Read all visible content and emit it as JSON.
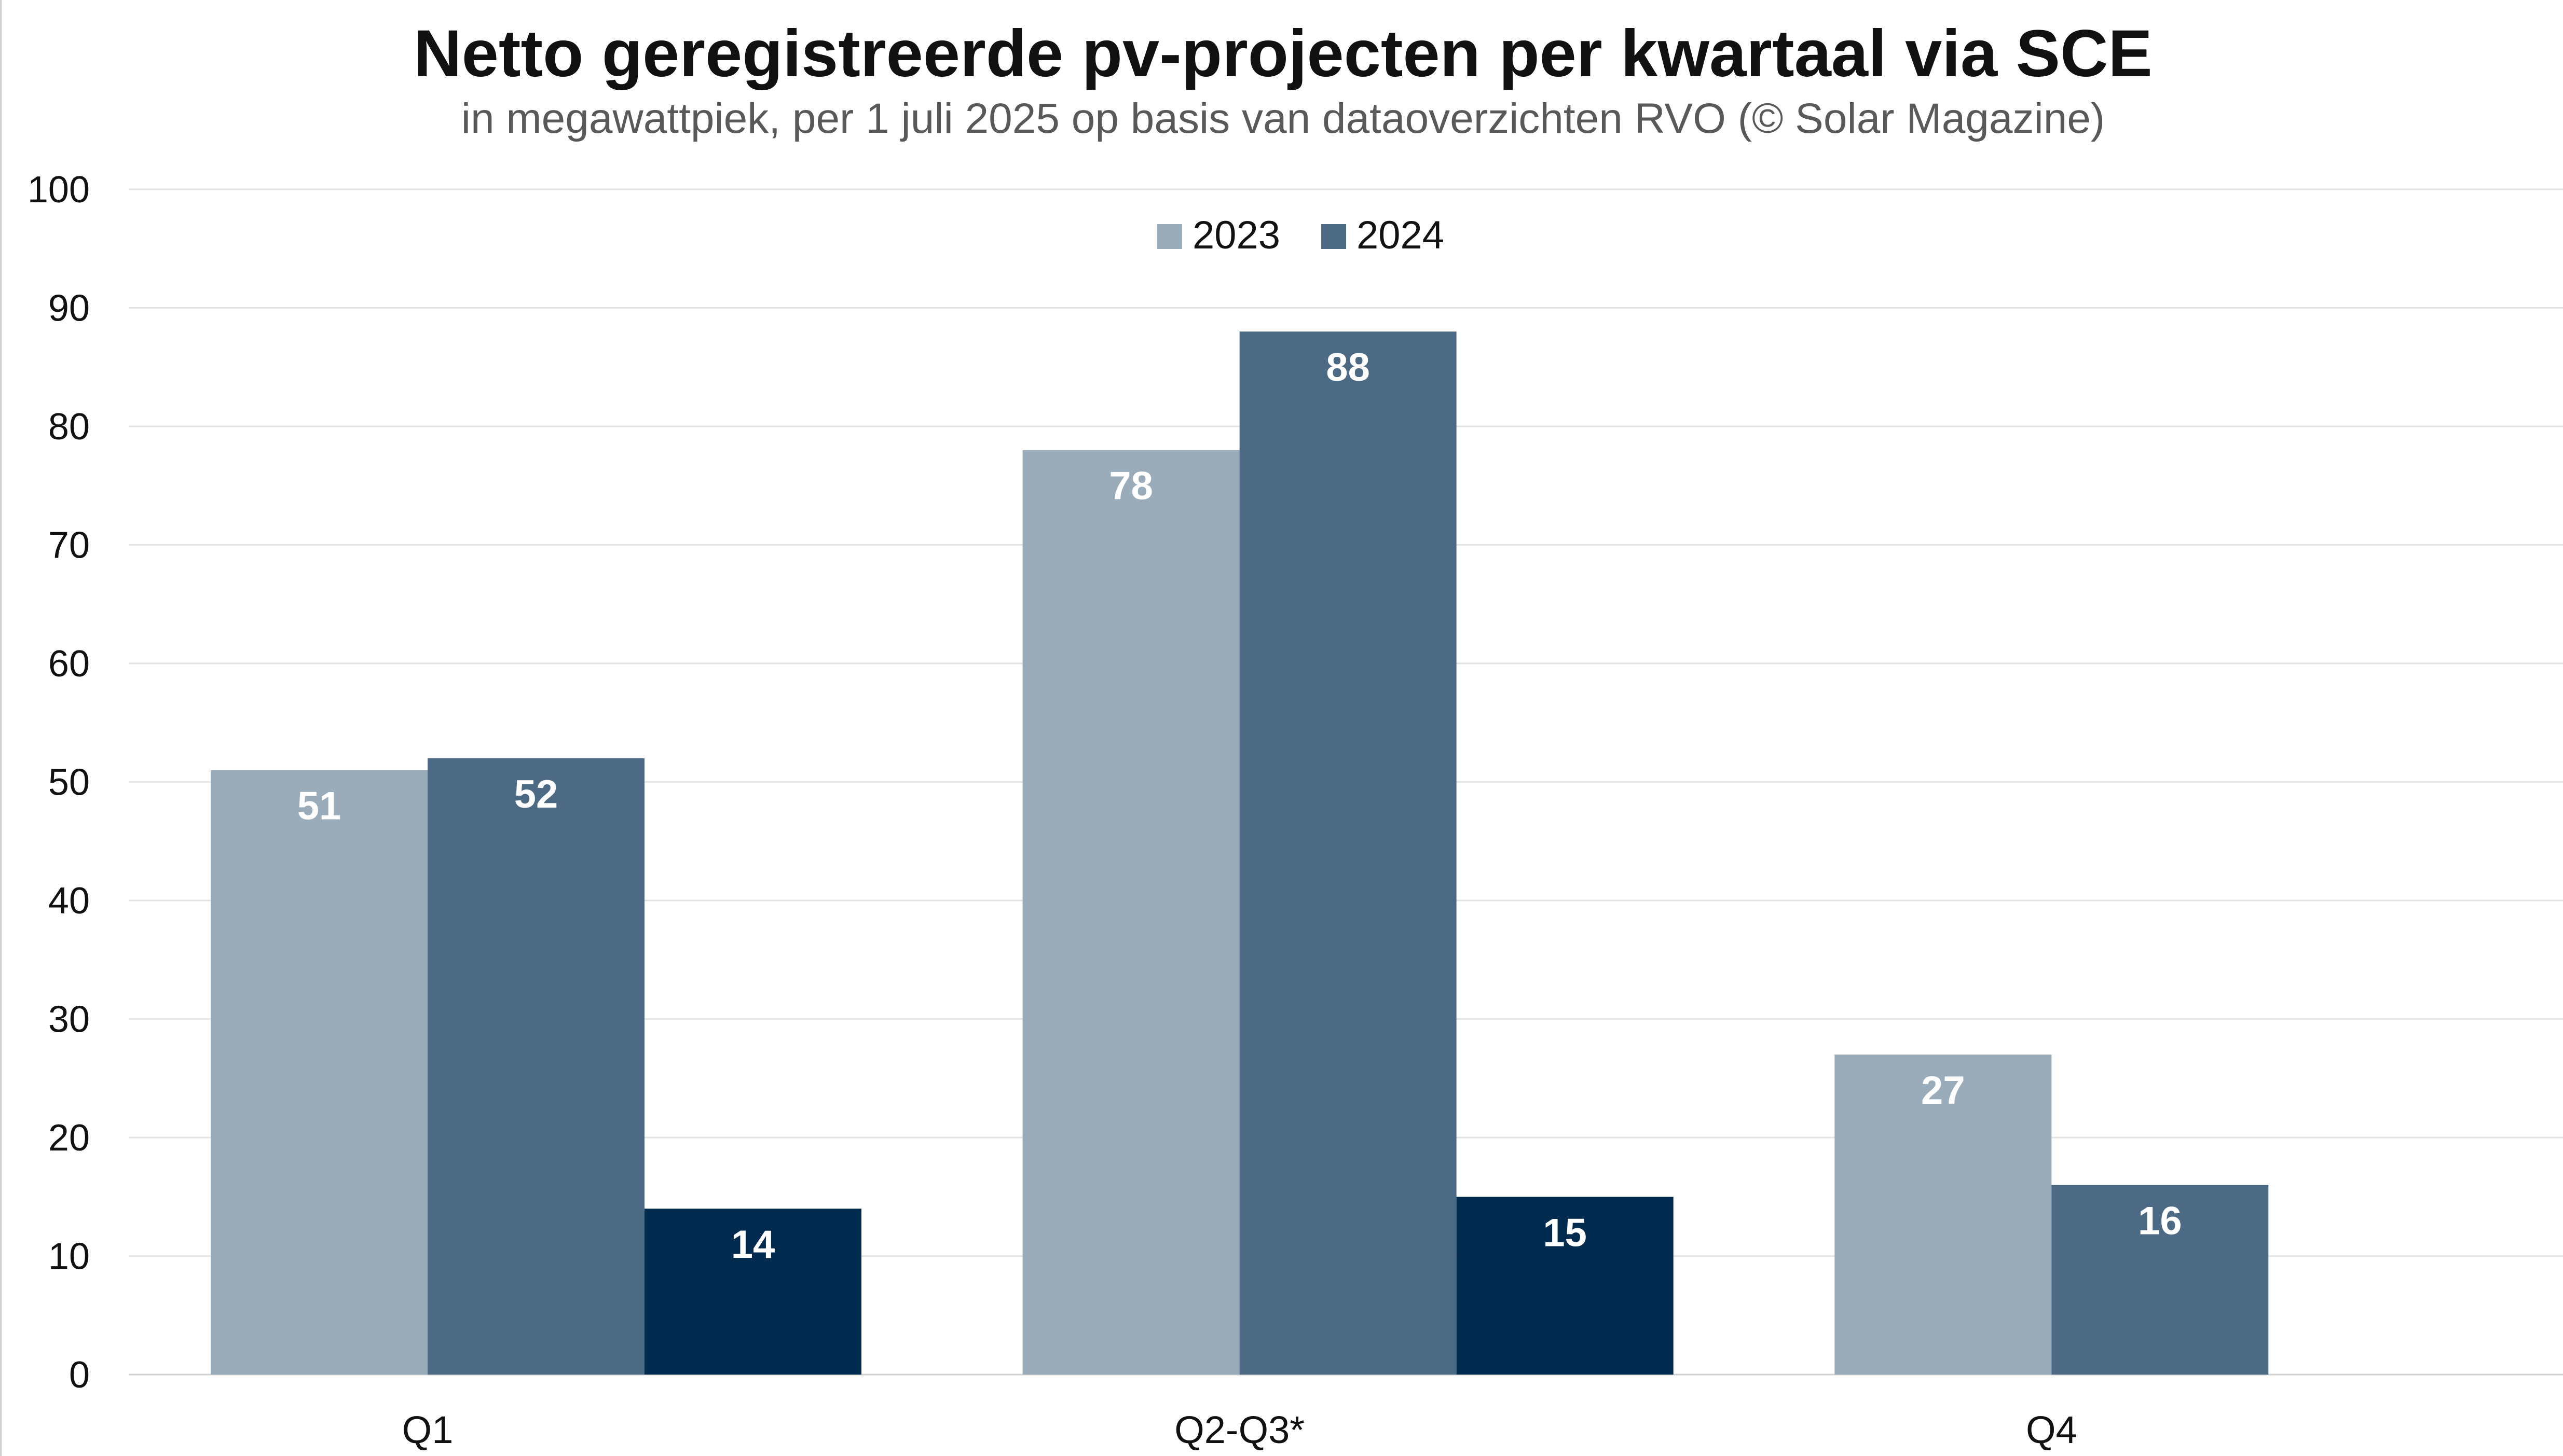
{
  "chart_data": {
    "type": "bar",
    "title": "Netto geregistreerde pv-projecten per kwartaal via SCE",
    "subtitle": "in megawattpiek, per 1 juli 2025 op basis van dataoverzichten RVO (© Solar Magazine)",
    "categories": [
      "Q1",
      "Q2-Q3*",
      "Q4"
    ],
    "series": [
      {
        "name": "2023",
        "color": "#9aabba",
        "values": [
          51,
          78,
          27
        ]
      },
      {
        "name": "2024",
        "color": "#4d6a84",
        "values": [
          52,
          88,
          16
        ]
      },
      {
        "name": "",
        "color": "#002b4f",
        "values": [
          14,
          15,
          null
        ]
      }
    ],
    "ylim": [
      0,
      100
    ],
    "yticks": [
      "0",
      "10",
      "20",
      "30",
      "40",
      "50",
      "60",
      "70",
      "80",
      "90",
      "100"
    ],
    "grid": true,
    "legend": {
      "placement": "top-center",
      "entries": [
        "2023",
        "2024"
      ]
    },
    "data_labels": true
  }
}
